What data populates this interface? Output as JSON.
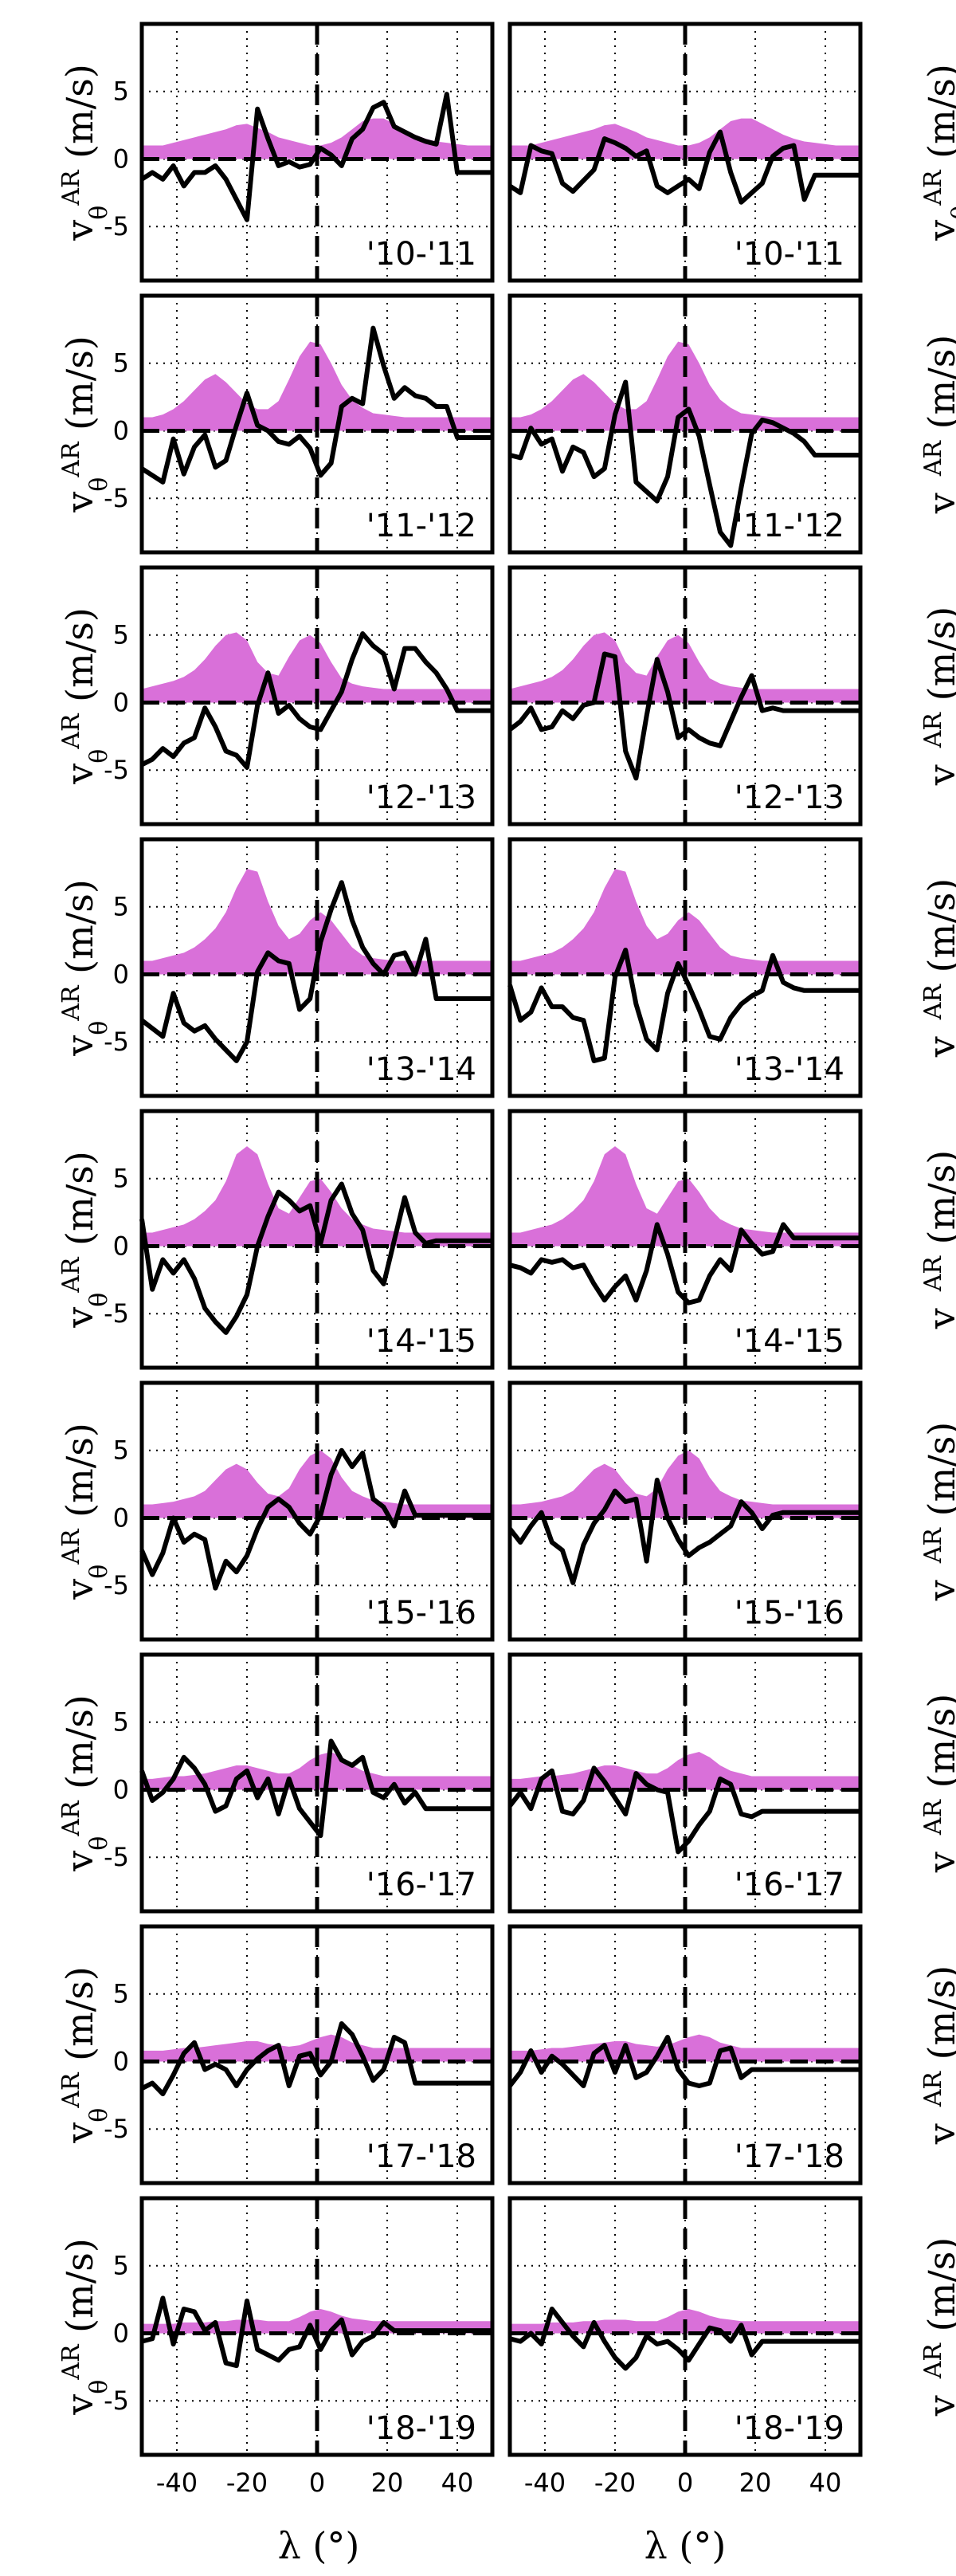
{
  "chart_data": {
    "type": "line",
    "description_axes": {
      "xlabel": "λ (°)",
      "ylabel_left": "v_θ^AR (m/s)",
      "ylabel_right": "v_φ^AR (m/s)",
      "xlim": [
        -50,
        50
      ],
      "ylim": [
        -9,
        10
      ],
      "xticks": [
        -40,
        -20,
        0,
        20,
        40
      ],
      "yticks": [
        -5,
        0,
        5
      ],
      "grid": "dotted",
      "reference_line_x": 0
    },
    "x": [
      -50,
      -47,
      -44,
      -41,
      -38,
      -35,
      -32,
      -29,
      -26,
      -23,
      -20,
      -17,
      -14,
      -11,
      -8,
      -5,
      -2,
      1,
      4,
      7,
      10,
      13,
      16,
      19,
      22,
      25,
      28,
      31,
      34,
      37,
      40,
      43,
      46,
      50
    ],
    "columns": [
      {
        "name": "left",
        "ylabel": "v_θ^AR (m/s)"
      },
      {
        "name": "right",
        "ylabel": "v_φ^AR (m/s)"
      }
    ],
    "rows": [
      {
        "period": "'10-'11",
        "activity": [
          1.0,
          1.0,
          1.0,
          1.2,
          1.4,
          1.6,
          1.8,
          2.0,
          2.2,
          2.5,
          2.6,
          2.3,
          2.0,
          1.6,
          1.4,
          1.2,
          1.0,
          1.0,
          1.2,
          1.6,
          2.2,
          2.8,
          3.0,
          3.0,
          2.6,
          2.2,
          1.8,
          1.5,
          1.3,
          1.2,
          1.1,
          1.0,
          1.0,
          1.0
        ],
        "left": [
          -1.5,
          -1.0,
          -1.5,
          -0.5,
          -2.0,
          -1.0,
          -1.0,
          -0.5,
          -1.5,
          -3.0,
          -4.5,
          3.7,
          1.5,
          -0.5,
          -0.2,
          -0.6,
          -0.4,
          0.8,
          0.3,
          -0.5,
          1.5,
          2.2,
          3.8,
          4.2,
          2.4,
          2.0,
          1.6,
          1.3,
          1.1,
          4.8,
          -1.0,
          -1.0,
          -1.0,
          -1.0
        ],
        "right": [
          -2.0,
          -2.5,
          1.0,
          0.6,
          0.4,
          -1.8,
          -2.4,
          -1.6,
          -0.8,
          1.5,
          1.2,
          0.8,
          0.2,
          0.6,
          -2.0,
          -2.5,
          -2.0,
          -1.5,
          -2.2,
          0.5,
          2.0,
          -1.0,
          -3.2,
          -2.5,
          -1.8,
          0.2,
          0.8,
          1.0,
          -3.0,
          -1.2,
          -1.2,
          -1.2,
          -1.2,
          -1.2
        ]
      },
      {
        "period": "'11-'12",
        "activity": [
          1.0,
          1.0,
          1.2,
          1.6,
          2.2,
          3.0,
          3.8,
          4.2,
          3.6,
          2.8,
          2.0,
          1.6,
          1.6,
          2.2,
          3.8,
          5.5,
          6.6,
          6.4,
          5.0,
          3.4,
          2.3,
          1.7,
          1.3,
          1.2,
          1.1,
          1.0,
          1.0,
          1.0,
          1.0,
          1.0,
          1.0,
          1.0,
          1.0,
          1.0
        ],
        "left": [
          -2.8,
          -3.3,
          -3.8,
          -0.6,
          -3.2,
          -1.2,
          -0.3,
          -2.7,
          -2.2,
          0.4,
          2.8,
          0.4,
          0.0,
          -0.8,
          -1.0,
          -0.4,
          -1.3,
          -3.3,
          -2.4,
          1.8,
          2.4,
          2.0,
          7.6,
          4.8,
          2.4,
          3.2,
          2.6,
          2.4,
          1.8,
          1.8,
          -0.5,
          -0.5,
          -0.5,
          -0.5
        ],
        "right": [
          -1.8,
          -2.0,
          0.2,
          -1.0,
          -0.6,
          -3.0,
          -1.2,
          -1.6,
          -3.4,
          -2.8,
          1.2,
          3.6,
          -3.8,
          -4.5,
          -5.2,
          -3.4,
          1.0,
          1.6,
          -0.4,
          -4.0,
          -7.5,
          -8.5,
          -4.2,
          -0.2,
          0.8,
          0.6,
          0.2,
          -0.2,
          -0.8,
          -1.8,
          -1.8,
          -1.8,
          -1.8,
          -1.8
        ]
      },
      {
        "period": "'12-'13",
        "activity": [
          1.0,
          1.2,
          1.4,
          1.6,
          1.9,
          2.4,
          3.2,
          4.2,
          5.0,
          5.2,
          4.6,
          3.0,
          2.2,
          2.0,
          3.4,
          4.6,
          5.0,
          4.4,
          3.0,
          1.8,
          1.4,
          1.2,
          1.1,
          1.0,
          1.0,
          1.0,
          1.0,
          1.0,
          1.0,
          1.0,
          1.0,
          1.0,
          1.0,
          1.0
        ],
        "left": [
          -4.6,
          -4.2,
          -3.4,
          -4.0,
          -3.0,
          -2.6,
          -0.4,
          -1.8,
          -3.6,
          -3.9,
          -4.8,
          -0.2,
          2.2,
          -0.8,
          -0.2,
          -1.2,
          -1.8,
          -2.0,
          -0.6,
          0.8,
          3.2,
          5.1,
          4.2,
          3.6,
          1.0,
          4.0,
          4.0,
          3.0,
          2.2,
          1.0,
          -0.6,
          -0.6,
          -0.6,
          -0.6
        ],
        "right": [
          -2.0,
          -1.4,
          -0.4,
          -2.0,
          -1.8,
          -0.6,
          -1.2,
          -0.2,
          0.0,
          3.6,
          3.4,
          -3.6,
          -5.6,
          -1.0,
          3.2,
          0.8,
          -2.6,
          -2.0,
          -2.6,
          -3.0,
          -3.2,
          -1.4,
          0.4,
          2.0,
          -0.6,
          -0.4,
          -0.6,
          -0.6,
          -0.6,
          -0.6,
          -0.6,
          -0.6,
          -0.6,
          -0.6
        ]
      },
      {
        "period": "'13-'14",
        "activity": [
          1.0,
          1.0,
          1.2,
          1.4,
          1.6,
          2.0,
          2.6,
          3.4,
          4.6,
          6.4,
          7.8,
          7.6,
          5.4,
          3.6,
          2.6,
          3.0,
          4.0,
          4.6,
          4.0,
          3.0,
          2.0,
          1.4,
          1.2,
          1.1,
          1.0,
          1.0,
          1.0,
          1.0,
          1.0,
          1.0,
          1.0,
          1.0,
          1.0,
          1.0
        ],
        "left": [
          -3.4,
          -4.0,
          -4.6,
          -1.4,
          -3.6,
          -4.2,
          -3.8,
          -4.8,
          -5.6,
          -6.4,
          -5.0,
          0.2,
          1.6,
          1.0,
          0.8,
          -2.6,
          -1.8,
          2.4,
          4.8,
          6.8,
          4.0,
          2.0,
          0.8,
          0.0,
          1.4,
          1.6,
          0.0,
          2.6,
          -1.8,
          -1.8,
          -1.8,
          -1.8,
          -1.8,
          -1.8
        ],
        "right": [
          -0.8,
          -3.4,
          -2.8,
          -1.0,
          -2.4,
          -2.4,
          -3.2,
          -3.4,
          -6.4,
          -6.2,
          -0.2,
          1.8,
          -2.2,
          -4.8,
          -5.6,
          -1.4,
          0.8,
          -0.8,
          -2.6,
          -4.6,
          -4.8,
          -3.2,
          -2.2,
          -1.6,
          -1.2,
          1.4,
          -0.6,
          -1.0,
          -1.2,
          -1.2,
          -1.2,
          -1.2,
          -1.2,
          -1.2
        ]
      },
      {
        "period": "'14-'15",
        "activity": [
          1.0,
          1.0,
          1.2,
          1.4,
          1.6,
          2.0,
          2.6,
          3.4,
          4.8,
          6.8,
          7.4,
          6.8,
          4.6,
          2.8,
          2.4,
          3.6,
          4.8,
          5.0,
          4.0,
          2.8,
          2.0,
          1.6,
          1.3,
          1.2,
          1.1,
          1.0,
          1.0,
          1.0,
          1.0,
          1.0,
          1.0,
          1.0,
          1.0,
          1.0
        ],
        "left": [
          2.0,
          -3.2,
          -1.0,
          -2.0,
          -1.0,
          -2.4,
          -4.6,
          -5.6,
          -6.4,
          -5.2,
          -3.6,
          0.0,
          2.2,
          4.0,
          3.4,
          2.6,
          3.0,
          0.2,
          3.4,
          4.6,
          2.4,
          1.2,
          -1.8,
          -2.8,
          0.4,
          3.6,
          1.0,
          0.2,
          0.4,
          0.4,
          0.4,
          0.4,
          0.4,
          0.4
        ],
        "right": [
          -1.4,
          -1.6,
          -2.0,
          -1.0,
          -1.2,
          -1.0,
          -1.6,
          -1.4,
          -2.8,
          -4.0,
          -3.0,
          -2.2,
          -4.0,
          -1.8,
          1.6,
          -0.6,
          -3.4,
          -4.2,
          -4.0,
          -2.2,
          -1.0,
          -1.8,
          1.2,
          0.2,
          -0.6,
          -0.4,
          1.6,
          0.6,
          0.6,
          0.6,
          0.6,
          0.6,
          0.6,
          0.6
        ]
      },
      {
        "period": "'15-'16",
        "activity": [
          1.0,
          1.0,
          1.1,
          1.2,
          1.4,
          1.6,
          2.0,
          2.8,
          3.6,
          4.0,
          3.6,
          2.6,
          1.8,
          1.6,
          2.2,
          3.6,
          4.6,
          5.0,
          4.4,
          3.0,
          2.0,
          1.6,
          1.3,
          1.2,
          1.1,
          1.0,
          1.0,
          1.0,
          1.0,
          1.0,
          1.0,
          1.0,
          1.0,
          1.0
        ],
        "left": [
          -2.4,
          -4.2,
          -2.6,
          0.0,
          -1.8,
          -1.2,
          -1.6,
          -5.2,
          -3.2,
          -4.0,
          -2.8,
          -0.8,
          0.8,
          1.4,
          0.8,
          -0.4,
          -1.2,
          0.2,
          3.2,
          5.0,
          3.8,
          4.8,
          1.4,
          0.8,
          -0.6,
          2.0,
          0.2,
          0.2,
          0.2,
          0.2,
          0.2,
          0.2,
          0.2,
          0.2
        ],
        "right": [
          -0.8,
          -1.8,
          -0.6,
          0.4,
          -1.8,
          -2.4,
          -4.8,
          -2.0,
          -0.4,
          0.6,
          2.0,
          1.2,
          1.4,
          -3.2,
          2.8,
          0.0,
          -1.6,
          -2.8,
          -2.2,
          -1.8,
          -1.2,
          -0.6,
          1.2,
          0.4,
          -0.8,
          0.2,
          0.4,
          0.4,
          0.4,
          0.4,
          0.4,
          0.4,
          0.4,
          0.4
        ]
      },
      {
        "period": "'16-'17",
        "activity": [
          0.8,
          0.8,
          0.9,
          1.0,
          1.0,
          1.1,
          1.2,
          1.4,
          1.6,
          1.8,
          1.8,
          1.6,
          1.4,
          1.2,
          1.2,
          1.6,
          2.2,
          2.6,
          2.8,
          2.4,
          1.8,
          1.4,
          1.2,
          1.0,
          1.0,
          1.0,
          1.0,
          1.0,
          1.0,
          1.0,
          1.0,
          1.0,
          1.0,
          1.0
        ],
        "left": [
          1.4,
          -0.8,
          -0.2,
          0.8,
          2.4,
          1.6,
          0.4,
          -1.6,
          -1.2,
          0.8,
          1.4,
          -0.6,
          0.8,
          -1.8,
          0.8,
          -1.4,
          -2.4,
          -3.4,
          3.6,
          2.2,
          1.8,
          2.4,
          -0.2,
          -0.6,
          0.4,
          -1.0,
          -0.2,
          -1.4,
          -1.4,
          -1.4,
          -1.4,
          -1.4,
          -1.4,
          -1.4
        ],
        "right": [
          -1.2,
          -0.2,
          -1.4,
          0.8,
          1.4,
          -1.6,
          -1.8,
          -0.8,
          1.6,
          0.6,
          -0.6,
          -1.8,
          1.2,
          0.4,
          0.0,
          -0.2,
          -4.6,
          -3.8,
          -2.6,
          -1.6,
          0.8,
          0.4,
          -1.8,
          -2.0,
          -1.6,
          -1.6,
          -1.6,
          -1.6,
          -1.6,
          -1.6,
          -1.6,
          -1.6,
          -1.6,
          -1.6
        ]
      },
      {
        "period": "'17-'18",
        "activity": [
          0.8,
          0.8,
          0.8,
          0.9,
          1.0,
          1.0,
          1.1,
          1.2,
          1.3,
          1.4,
          1.5,
          1.5,
          1.3,
          1.2,
          1.1,
          1.2,
          1.5,
          1.8,
          2.0,
          1.8,
          1.4,
          1.2,
          1.0,
          1.0,
          1.0,
          1.0,
          1.0,
          1.0,
          1.0,
          1.0,
          1.0,
          1.0,
          1.0,
          1.0
        ],
        "left": [
          -2.0,
          -1.6,
          -2.4,
          -1.0,
          0.6,
          1.4,
          -0.6,
          -0.2,
          -0.6,
          -1.8,
          -0.6,
          0.2,
          0.8,
          1.2,
          -1.8,
          0.4,
          0.6,
          -1.0,
          0.0,
          2.8,
          2.0,
          0.4,
          -1.4,
          -0.6,
          1.8,
          1.4,
          -1.6,
          -1.6,
          -1.6,
          -1.6,
          -1.6,
          -1.6,
          -1.6,
          -1.6
        ],
        "right": [
          -1.8,
          -0.8,
          0.8,
          -0.8,
          0.4,
          -0.2,
          -1.0,
          -1.8,
          0.6,
          1.2,
          -0.8,
          1.2,
          -1.2,
          -0.8,
          0.4,
          1.8,
          -0.6,
          -1.6,
          -1.8,
          -1.6,
          0.8,
          1.0,
          -1.2,
          -0.6,
          -0.6,
          -0.6,
          -0.6,
          -0.6,
          -0.6,
          -0.6,
          -0.6,
          -0.6,
          -0.6,
          -0.6
        ]
      },
      {
        "period": "'18-'19",
        "activity": [
          0.7,
          0.7,
          0.7,
          0.7,
          0.8,
          0.8,
          0.8,
          0.9,
          0.9,
          1.0,
          1.0,
          1.0,
          0.9,
          0.9,
          0.9,
          1.2,
          1.6,
          1.8,
          1.6,
          1.3,
          1.1,
          1.0,
          0.9,
          0.9,
          0.9,
          0.9,
          0.9,
          0.9,
          0.9,
          0.9,
          0.9,
          0.9,
          0.9,
          0.9
        ],
        "left": [
          -0.6,
          -0.4,
          2.6,
          -0.8,
          1.8,
          1.6,
          0.2,
          0.8,
          -2.2,
          -2.4,
          2.4,
          -1.2,
          -1.6,
          -2.0,
          -1.2,
          -1.0,
          0.6,
          -1.2,
          0.2,
          1.0,
          -1.6,
          -0.6,
          -0.2,
          0.8,
          0.2,
          0.2,
          0.2,
          0.2,
          0.2,
          0.2,
          0.2,
          0.2,
          0.2,
          0.2
        ],
        "right": [
          -0.4,
          -0.6,
          0.0,
          -0.8,
          1.8,
          0.8,
          -0.2,
          -1.0,
          0.8,
          -0.6,
          -1.8,
          -2.6,
          -1.8,
          -0.2,
          -0.8,
          -0.6,
          -1.2,
          -2.0,
          -0.8,
          0.4,
          0.2,
          -0.6,
          0.6,
          -1.6,
          -0.6,
          -0.6,
          -0.6,
          -0.6,
          -0.6,
          -0.6,
          -0.6,
          -0.6,
          -0.6,
          -0.6
        ]
      }
    ],
    "colors": {
      "activity_fill": "#d970d9",
      "line": "#000000",
      "frame": "#000000"
    }
  },
  "labels": {
    "xlabel": "λ (°)",
    "ylabel_left_base": "v",
    "ylabel_left_sub": "θ",
    "ylabel_right_sub": "φ",
    "ylabel_sup": "AR",
    "ylabel_units": "(m/s)"
  }
}
